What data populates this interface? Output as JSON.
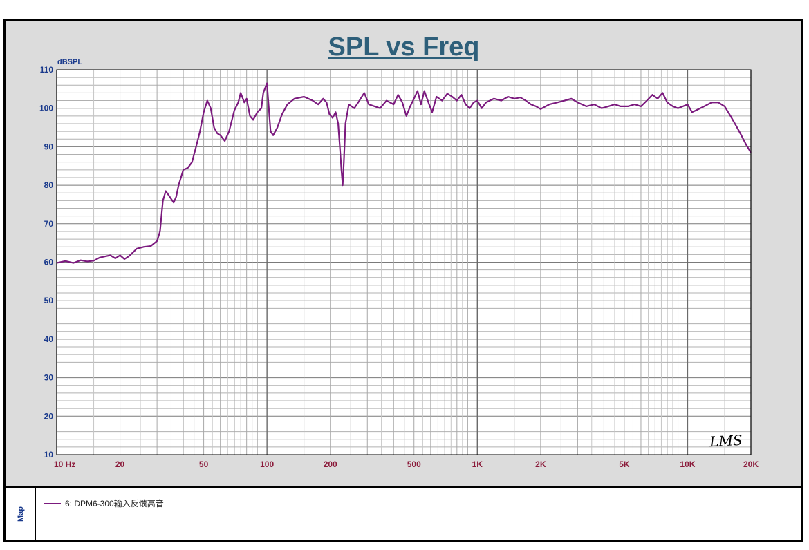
{
  "window": {
    "map_label": "Map"
  },
  "chart_data": {
    "type": "line",
    "title": "SPL vs Freq",
    "ylabel": "dBSPL",
    "xlabel": "",
    "xscale": "log",
    "xlim": [
      10,
      20000
    ],
    "ylim": [
      10,
      110
    ],
    "grid": true,
    "legend_position": "bottom",
    "watermark": "LMS",
    "colors": {
      "series": "#7b1a7e",
      "title": "#2e5f7a",
      "axis_text": "#1a3a8c",
      "freq_text": "#8b1a3a",
      "plot_bg": "#ffffff",
      "frame_bg": "#dcdcdc"
    },
    "x_ticks": [
      {
        "value": 10,
        "label": "10  Hz"
      },
      {
        "value": 20,
        "label": "20"
      },
      {
        "value": 50,
        "label": "50"
      },
      {
        "value": 100,
        "label": "100"
      },
      {
        "value": 200,
        "label": "200"
      },
      {
        "value": 500,
        "label": "500"
      },
      {
        "value": 1000,
        "label": "1K"
      },
      {
        "value": 2000,
        "label": "2K"
      },
      {
        "value": 5000,
        "label": "5K"
      },
      {
        "value": 10000,
        "label": "10K"
      },
      {
        "value": 20000,
        "label": "20K"
      }
    ],
    "y_ticks": [
      110,
      100,
      90,
      80,
      70,
      60,
      50,
      40,
      30,
      20,
      10
    ],
    "series": [
      {
        "name": "6: DPM6-300输入反馈高音",
        "points": [
          [
            10,
            59.8
          ],
          [
            11,
            60.3
          ],
          [
            12,
            59.8
          ],
          [
            13,
            60.5
          ],
          [
            14,
            60.2
          ],
          [
            15,
            60.4
          ],
          [
            16,
            61.2
          ],
          [
            17,
            61.5
          ],
          [
            18,
            61.8
          ],
          [
            19,
            61.0
          ],
          [
            20,
            61.8
          ],
          [
            21,
            60.8
          ],
          [
            22,
            61.5
          ],
          [
            23,
            62.5
          ],
          [
            24,
            63.5
          ],
          [
            26,
            64.0
          ],
          [
            28,
            64.2
          ],
          [
            30,
            65.5
          ],
          [
            31,
            68.0
          ],
          [
            32,
            76.0
          ],
          [
            33,
            78.5
          ],
          [
            34,
            77.5
          ],
          [
            36,
            75.5
          ],
          [
            37,
            77.0
          ],
          [
            38,
            80.0
          ],
          [
            40,
            84.0
          ],
          [
            42,
            84.5
          ],
          [
            44,
            86.0
          ],
          [
            46,
            90.0
          ],
          [
            48,
            94.0
          ],
          [
            50,
            99.0
          ],
          [
            52,
            102.0
          ],
          [
            54,
            100.0
          ],
          [
            56,
            95.0
          ],
          [
            58,
            93.5
          ],
          [
            60,
            93.0
          ],
          [
            63,
            91.5
          ],
          [
            66,
            94.0
          ],
          [
            70,
            99.5
          ],
          [
            73,
            101.5
          ],
          [
            75,
            104.0
          ],
          [
            78,
            101.5
          ],
          [
            80,
            102.5
          ],
          [
            83,
            98.0
          ],
          [
            86,
            97.0
          ],
          [
            90,
            99.0
          ],
          [
            94,
            100.0
          ],
          [
            96,
            104.0
          ],
          [
            100,
            106.5
          ],
          [
            102,
            100.0
          ],
          [
            104,
            94.0
          ],
          [
            107,
            93.0
          ],
          [
            112,
            95.0
          ],
          [
            118,
            98.5
          ],
          [
            125,
            101.0
          ],
          [
            135,
            102.5
          ],
          [
            150,
            103.0
          ],
          [
            165,
            102.0
          ],
          [
            175,
            101.0
          ],
          [
            185,
            102.5
          ],
          [
            192,
            101.5
          ],
          [
            198,
            98.5
          ],
          [
            205,
            97.5
          ],
          [
            212,
            99.0
          ],
          [
            218,
            96.0
          ],
          [
            222,
            90.0
          ],
          [
            226,
            84.0
          ],
          [
            229,
            80.0
          ],
          [
            232,
            86.0
          ],
          [
            236,
            96.0
          ],
          [
            245,
            101.0
          ],
          [
            260,
            100.0
          ],
          [
            275,
            102.0
          ],
          [
            290,
            104.0
          ],
          [
            305,
            101.0
          ],
          [
            325,
            100.5
          ],
          [
            345,
            100.0
          ],
          [
            370,
            102.0
          ],
          [
            400,
            101.0
          ],
          [
            420,
            103.5
          ],
          [
            440,
            101.5
          ],
          [
            460,
            98.0
          ],
          [
            480,
            100.5
          ],
          [
            500,
            102.5
          ],
          [
            520,
            104.5
          ],
          [
            540,
            101.0
          ],
          [
            560,
            104.5
          ],
          [
            590,
            101.0
          ],
          [
            610,
            99.0
          ],
          [
            640,
            103.0
          ],
          [
            680,
            102.0
          ],
          [
            720,
            103.8
          ],
          [
            760,
            103.0
          ],
          [
            800,
            102.0
          ],
          [
            840,
            103.5
          ],
          [
            880,
            101.0
          ],
          [
            920,
            100.0
          ],
          [
            960,
            101.5
          ],
          [
            1000,
            102.0
          ],
          [
            1050,
            100.0
          ],
          [
            1100,
            101.5
          ],
          [
            1200,
            102.5
          ],
          [
            1300,
            102.0
          ],
          [
            1400,
            103.0
          ],
          [
            1500,
            102.5
          ],
          [
            1600,
            102.8
          ],
          [
            1700,
            102.0
          ],
          [
            1800,
            101.0
          ],
          [
            1900,
            100.5
          ],
          [
            2000,
            99.8
          ],
          [
            2200,
            101.0
          ],
          [
            2400,
            101.5
          ],
          [
            2600,
            102.0
          ],
          [
            2800,
            102.5
          ],
          [
            3000,
            101.5
          ],
          [
            3300,
            100.5
          ],
          [
            3600,
            101.0
          ],
          [
            3900,
            100.0
          ],
          [
            4200,
            100.5
          ],
          [
            4500,
            101.0
          ],
          [
            4800,
            100.5
          ],
          [
            5200,
            100.5
          ],
          [
            5600,
            101.0
          ],
          [
            6000,
            100.5
          ],
          [
            6400,
            102.0
          ],
          [
            6800,
            103.5
          ],
          [
            7200,
            102.5
          ],
          [
            7600,
            104.0
          ],
          [
            8000,
            101.5
          ],
          [
            8500,
            100.5
          ],
          [
            9000,
            100.0
          ],
          [
            9500,
            100.5
          ],
          [
            10000,
            101.0
          ],
          [
            10500,
            99.0
          ],
          [
            11000,
            99.5
          ],
          [
            12000,
            100.5
          ],
          [
            13000,
            101.5
          ],
          [
            14000,
            101.5
          ],
          [
            15000,
            100.5
          ],
          [
            16000,
            98.0
          ],
          [
            17000,
            95.5
          ],
          [
            18000,
            93.0
          ],
          [
            19000,
            90.5
          ],
          [
            20000,
            88.5
          ]
        ]
      }
    ]
  }
}
